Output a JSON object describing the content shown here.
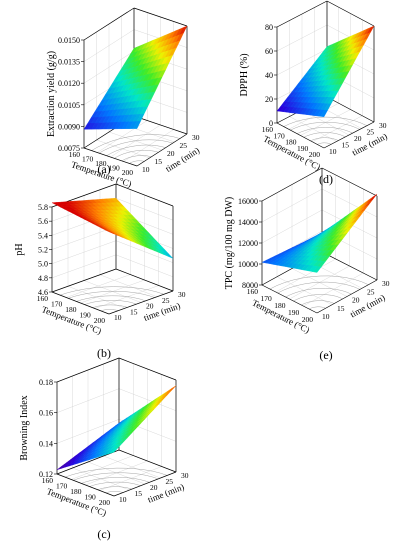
{
  "chart_data": [
    {
      "id": "a",
      "type": "surface3d",
      "label": "(a)",
      "zlabel": "Extraction yield (g/g)",
      "xlabel": "Temperature (°C)",
      "ylabel": "time (min)",
      "z_ticks": [
        "0.0075",
        "0.0090",
        "0.0105",
        "0.0120",
        "0.0135",
        "0.0150"
      ],
      "x_ticks": [
        "160",
        "170",
        "180",
        "190",
        "200"
      ],
      "y_ticks": [
        "10",
        "15",
        "20",
        "25",
        "30"
      ],
      "z_range": [
        0.0075,
        0.015
      ],
      "surface": {
        "temperature": [
          160,
          200
        ],
        "time": [
          10,
          30
        ],
        "z": [
          [
            0.0088,
            0.0122
          ],
          [
            0.0101,
            0.015
          ]
        ]
      }
    },
    {
      "id": "d",
      "type": "surface3d",
      "label": "(d)",
      "zlabel": "DPPH (%)",
      "xlabel": "Temperature (°C)",
      "ylabel": "time (min)",
      "z_ticks": [
        "0",
        "20",
        "40",
        "60",
        "80"
      ],
      "x_ticks": [
        "160",
        "170",
        "180",
        "190",
        "200"
      ],
      "y_ticks": [
        "10",
        "15",
        "20",
        "25",
        "30"
      ],
      "z_range": [
        0,
        80
      ],
      "surface": {
        "temperature": [
          160,
          200
        ],
        "time": [
          10,
          30
        ],
        "z": [
          [
            10,
            42
          ],
          [
            26,
            80
          ]
        ]
      }
    },
    {
      "id": "b",
      "type": "surface3d",
      "label": "(b)",
      "zlabel": "pH",
      "xlabel": "Temperature (°C)",
      "ylabel": "time (min)",
      "z_ticks": [
        "4.6",
        "4.8",
        "5.0",
        "5.2",
        "5.4",
        "5.6",
        "5.8"
      ],
      "x_ticks": [
        "160",
        "170",
        "180",
        "190",
        "200"
      ],
      "y_ticks": [
        "10",
        "15",
        "20",
        "25",
        "30"
      ],
      "z_range": [
        4.6,
        5.8
      ],
      "surface": {
        "temperature": [
          160,
          200
        ],
        "time": [
          10,
          30
        ],
        "z": [
          [
            5.86,
            5.6
          ],
          [
            5.76,
            5.06
          ]
        ]
      }
    },
    {
      "id": "e",
      "type": "surface3d",
      "label": "(e)",
      "zlabel": "TPC (mg/100 mg DW)",
      "xlabel": "Temperature (°C)",
      "ylabel": "time (min)",
      "z_ticks": [
        "8000",
        "10000",
        "12000",
        "14000",
        "16000"
      ],
      "x_ticks": [
        "160",
        "170",
        "180",
        "190",
        "200"
      ],
      "y_ticks": [
        "10",
        "15",
        "20",
        "25",
        "30"
      ],
      "z_range": [
        7500,
        16000
      ],
      "surface": {
        "temperature": [
          160,
          200
        ],
        "time": [
          10,
          30
        ],
        "z": [
          [
            9800,
            9400
          ],
          [
            11600,
            16200
          ]
        ]
      }
    },
    {
      "id": "c",
      "type": "surface3d",
      "label": "(c)",
      "zlabel": "Browning Index",
      "xlabel": "Temperature (°C)",
      "ylabel": "time (min)",
      "z_ticks": [
        "0.12",
        "0.14",
        "0.16",
        "0.18"
      ],
      "x_ticks": [
        "160",
        "170",
        "180",
        "190",
        "200"
      ],
      "y_ticks": [
        "10",
        "15",
        "20",
        "25",
        "30"
      ],
      "z_range": [
        0.115,
        0.18
      ],
      "surface": {
        "temperature": [
          160,
          200
        ],
        "time": [
          10,
          30
        ],
        "z": [
          [
            0.118,
            0.134
          ],
          [
            0.146,
            0.176
          ]
        ]
      }
    }
  ]
}
